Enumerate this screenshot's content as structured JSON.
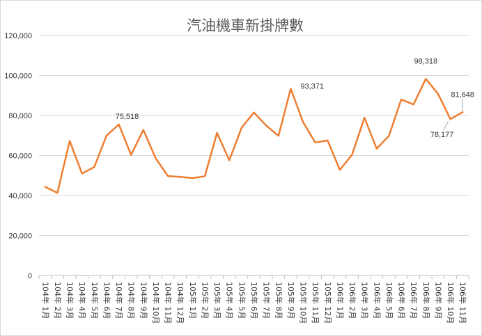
{
  "chart_data": {
    "type": "line",
    "title": "汽油機車新掛牌數",
    "xlabel": "",
    "ylabel": "",
    "ylim": [
      0,
      120000
    ],
    "y_ticks": [
      "0",
      "20,000",
      "40,000",
      "60,000",
      "80,000",
      "100,000",
      "120,000"
    ],
    "grid": "horizontal",
    "legend": "none",
    "line_color": "#ed7d31",
    "categories": [
      "104年 1月",
      "104年 2月",
      "104年 3月",
      "104年 4月",
      "104年 5月",
      "104年 6月",
      "104年 7月",
      "104年 8月",
      "104年 9月",
      "104年 10月",
      "104年 11月",
      "104年 12月",
      "105年 1月",
      "105年 2月",
      "105年 3月",
      "105年 4月",
      "105年 5月",
      "105年 6月",
      "105年 7月",
      "105年 8月",
      "105年 9月",
      "105年 10月",
      "105年 11月",
      "105年 12月",
      "106年 1月",
      "106年 2月",
      "106年 3月",
      "106年 4月",
      "106年 5月",
      "106年 6月",
      "106年 7月",
      "106年 8月",
      "106年 9月",
      "106年 10月",
      "106年 11月"
    ],
    "values": [
      44300,
      41300,
      67300,
      51000,
      54200,
      70000,
      75518,
      60300,
      72800,
      58600,
      49700,
      49300,
      48700,
      49600,
      71300,
      57600,
      73900,
      81500,
      75000,
      69800,
      93371,
      76800,
      66500,
      67500,
      52800,
      60400,
      78900,
      63400,
      69800,
      88000,
      85500,
      98318,
      90800,
      78177,
      81648
    ],
    "data_labels": [
      {
        "index": 6,
        "text": "75,518"
      },
      {
        "index": 20,
        "text": "93,371"
      },
      {
        "index": 31,
        "text": "98,318"
      },
      {
        "index": 33,
        "text": "78,177"
      },
      {
        "index": 34,
        "text": "81,648"
      }
    ]
  }
}
